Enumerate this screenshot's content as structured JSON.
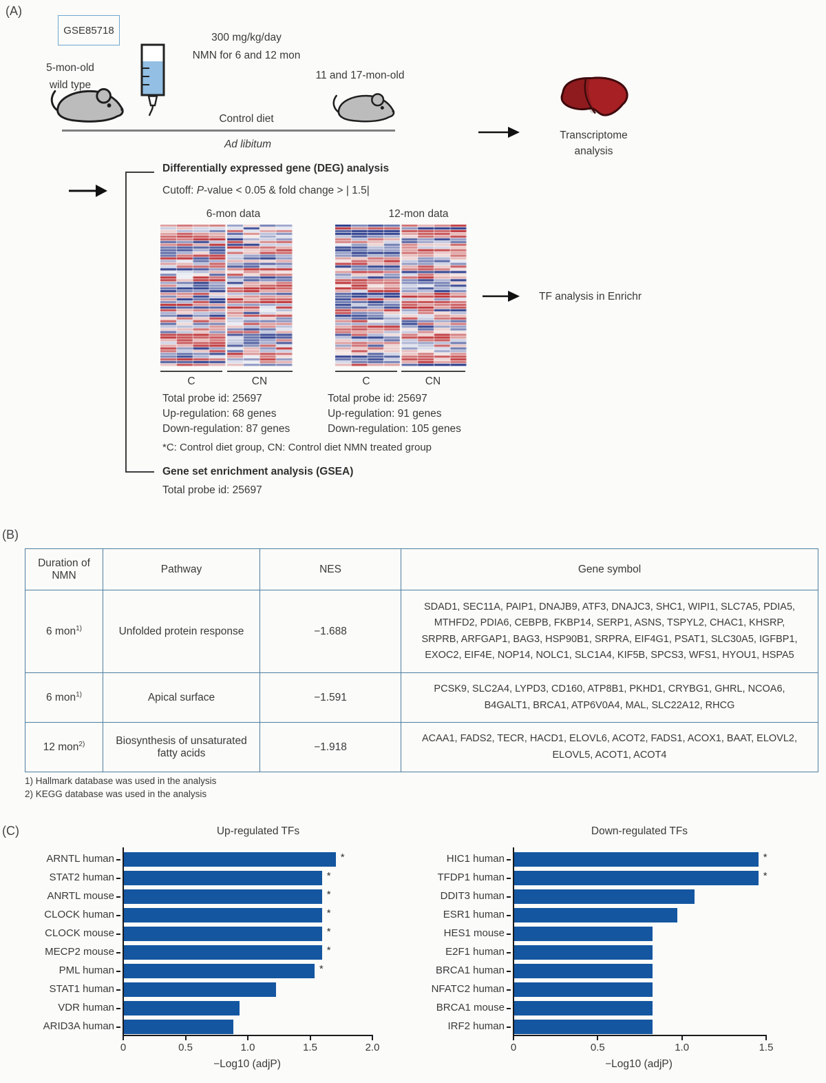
{
  "panel_a": {
    "label": "(A)",
    "gse_accession": "GSE85718",
    "dose_line1": "300 mg/kg/day",
    "dose_line2": "NMN for 6 and 12 mon",
    "left_mouse_line1": "5-mon-old",
    "left_mouse_line2": "wild type",
    "right_mouse_label": "11 and 17-mon-old",
    "control_diet": "Control diet",
    "ad_libitum": "Ad libitum",
    "transcriptome_line1": "Transcriptome",
    "transcriptome_line2": "analysis",
    "deg_title": "Differentially expressed gene (DEG) analysis",
    "cutoff_prefix": "Cutoff: ",
    "cutoff_italic": "P",
    "cutoff_rest": "-value < 0.05 & fold change > | 1.5|",
    "heatmap_6mon": {
      "title": "6-mon data",
      "group_left": "C",
      "group_right": "CN",
      "total_probe": "Total probe id: 25697",
      "up": "Up-regulation: 68 genes",
      "down": "Down-regulation: 87 genes"
    },
    "heatmap_12mon": {
      "title": "12-mon data",
      "group_left": "C",
      "group_right": "CN",
      "total_probe": "Total probe id: 25697",
      "up": "Up-regulation: 91 genes",
      "down": "Down-regulation: 105 genes"
    },
    "group_note": "*C: Control diet group, CN: Control diet NMN treated group",
    "tf_analysis_label": "TF analysis in Enrichr",
    "gsea_title": "Gene set enrichment analysis (GSEA)",
    "gsea_total_probe": "Total probe id: 25697"
  },
  "panel_b": {
    "label": "(B)",
    "headers": [
      "Duration of NMN",
      "Pathway",
      "NES",
      "Gene symbol"
    ],
    "rows": [
      {
        "duration": "6 mon",
        "duration_sup": "1)",
        "pathway": "Unfolded protein response",
        "nes": "−1.688",
        "genes": "SDAD1, SEC11A, PAIP1, DNAJB9, ATF3, DNAJC3, SHC1, WIPI1, SLC7A5, PDIA5, MTHFD2, PDIA6, CEBPB, FKBP14, SERP1, ASNS, TSPYL2, CHAC1, KHSRP, SRPRB, ARFGAP1, BAG3, HSP90B1, SRPRA, EIF4G1, PSAT1, SLC30A5, IGFBP1, EXOC2, EIF4E, NOP14, NOLC1, SLC1A4, KIF5B, SPCS3, WFS1, HYOU1, HSPA5"
      },
      {
        "duration": "6 mon",
        "duration_sup": "1)",
        "pathway": "Apical surface",
        "nes": "−1.591",
        "genes": "PCSK9, SLC2A4, LYPD3, CD160, ATP8B1, PKHD1, CRYBG1, GHRL, NCOA6, B4GALT1, BRCA1, ATP6V0A4, MAL, SLC22A12, RHCG"
      },
      {
        "duration": "12 mon",
        "duration_sup": "2)",
        "pathway": "Biosynthesis of unsaturated fatty acids",
        "nes": "−1.918",
        "genes": "ACAA1, FADS2, TECR, HACD1, ELOVL6, ACOT2, FADS1, ACOX1, BAAT, ELOVL2, ELOVL5, ACOT1, ACOT4"
      }
    ],
    "footnote1": "1) Hallmark database was used in the analysis",
    "footnote2": "2) KEGG database was used in the analysis"
  },
  "panel_c": {
    "label": "(C)"
  },
  "chart_data": [
    {
      "type": "bar",
      "orientation": "horizontal",
      "title": "Up-regulated TFs",
      "xlabel": "−Log10 (adjP)",
      "xlim": [
        0,
        2.0
      ],
      "xticks": [
        0,
        0.5,
        1.0,
        1.5,
        2.0
      ],
      "tick_labels": [
        "0",
        "0.5",
        "1.0",
        "1.5",
        "2.0"
      ],
      "categories": [
        "ARNTL human",
        "STAT2 human",
        "ANRTL mouse",
        "CLOCK human",
        "CLOCK mouse",
        "MECP2 mouse",
        "PML human",
        "STAT1 human",
        "VDR human",
        "ARID3A human"
      ],
      "values": [
        1.7,
        1.59,
        1.59,
        1.59,
        1.59,
        1.59,
        1.53,
        1.22,
        0.93,
        0.88
      ],
      "significant": [
        true,
        true,
        true,
        true,
        true,
        true,
        true,
        false,
        false,
        false
      ],
      "bar_color": "#1456a0",
      "legend": null,
      "grid": false
    },
    {
      "type": "bar",
      "orientation": "horizontal",
      "title": "Down-regulated TFs",
      "xlabel": "−Log10 (adjP)",
      "xlim": [
        0,
        1.5
      ],
      "xticks": [
        0,
        0.5,
        1.0,
        1.5
      ],
      "tick_labels": [
        "0",
        "0.5",
        "1.0",
        "1.5"
      ],
      "categories": [
        "HIC1 human",
        "TFDP1 human",
        "DDIT3 human",
        "ESR1 human",
        "HES1 mouse",
        "E2F1 human",
        "BRCA1 human",
        "NFATC2 human",
        "BRCA1 mouse",
        "IRF2 human"
      ],
      "values": [
        1.45,
        1.45,
        1.07,
        0.97,
        0.82,
        0.82,
        0.82,
        0.82,
        0.82,
        0.82
      ],
      "significant": [
        true,
        true,
        false,
        false,
        false,
        false,
        false,
        false,
        false,
        false
      ],
      "bar_color": "#1456a0",
      "legend": null,
      "grid": false
    }
  ],
  "colors": {
    "bar_blue": "#1456a0",
    "table_border": "#4e7ea1",
    "heatmap_red": "#bf3439",
    "heatmap_blue": "#2e3f8e",
    "liver_red": "#a62024",
    "water_blue": "#92bfe3",
    "mouse_gray": "#bcbcbc",
    "gse_box_border": "#6fa6cf"
  }
}
